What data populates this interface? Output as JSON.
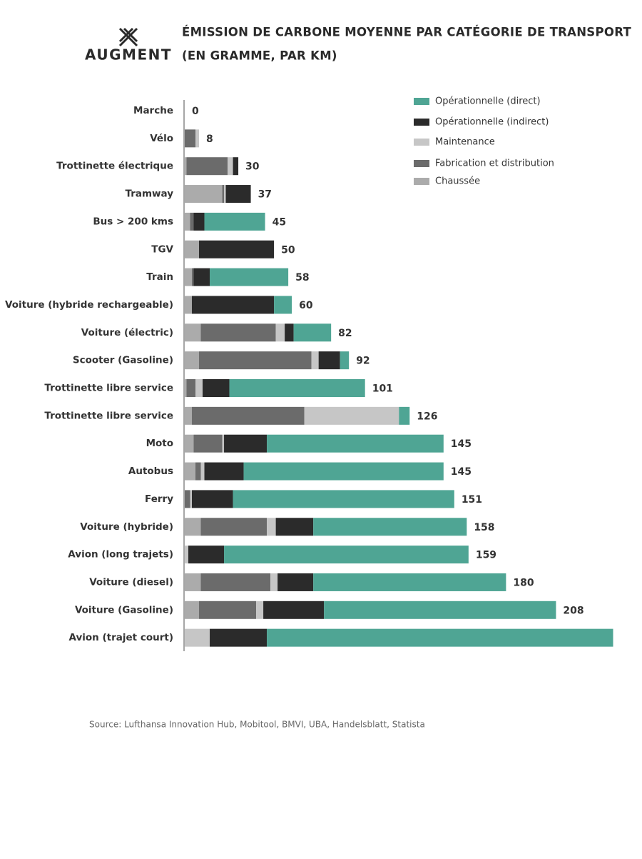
{
  "logo": "AUGMENT",
  "source": "Source: Lufthansa Innovation Hub, Mobitool, BMVI, UBA, Handelsblatt, Statista",
  "chart_data": {
    "type": "stacked-bar-horizontal",
    "title": "ÉMISSION DE CARBONE MOYENNE PAR CATÉGORIE DE TRANSPORT",
    "subtitle": "(EN GRAMME, PAR KM)",
    "categories": [
      "Marche",
      "Vélo",
      "Trottinette électrique",
      "Tramway",
      "Bus > 200 kms",
      "TGV",
      "Train",
      "Voiture (hybride rechargeable)",
      "Voiture (électric)",
      "Scooter (Gasoline)",
      "Trottinette libre service",
      "Trottinette libre service",
      "Moto",
      "Autobus",
      "Ferry",
      "Voiture (hybride)",
      "Avion (long trajets)",
      "Voiture (diesel)",
      "Voiture (Gasoline)",
      "Avion (trajet court)"
    ],
    "totals": [
      0,
      8,
      30,
      37,
      45,
      50,
      58,
      60,
      82,
      92,
      101,
      126,
      145,
      145,
      151,
      158,
      159,
      180,
      208,
      null
    ],
    "xlim": [
      0,
      241
    ],
    "series": [
      {
        "name": "Opérationnelle (direct)",
        "color": "#4fa594",
        "values": [
          0,
          0,
          0,
          0,
          34,
          0,
          44,
          10,
          21,
          5,
          76,
          6,
          99,
          112,
          124,
          86,
          137,
          108,
          130,
          194
        ]
      },
      {
        "name": "Opérationnelle (indirect)",
        "color": "#2b2b2b",
        "values": [
          0,
          0,
          3,
          14,
          6,
          42,
          9,
          46,
          5,
          12,
          15,
          0,
          24,
          22,
          23,
          21,
          20,
          20,
          34,
          32
        ]
      },
      {
        "name": "Maintenance",
        "color": "#c6c6c6",
        "values": [
          0,
          2,
          3,
          1,
          0,
          0,
          0,
          0,
          5,
          4,
          4,
          53,
          1,
          2,
          1,
          5,
          2,
          4,
          4,
          14
        ]
      },
      {
        "name": "Fabrication et distribution",
        "color": "#6b6b6b",
        "values": [
          0,
          6,
          23,
          1,
          2,
          0,
          1,
          0,
          42,
          63,
          5,
          63,
          16,
          3,
          3,
          37,
          0,
          39,
          32,
          0
        ]
      },
      {
        "name": "Chaussée",
        "color": "#ababab",
        "values": [
          0,
          0,
          1,
          21,
          3,
          8,
          4,
          4,
          9,
          8,
          1,
          4,
          5,
          6,
          0,
          9,
          0,
          9,
          8,
          0
        ]
      }
    ]
  }
}
